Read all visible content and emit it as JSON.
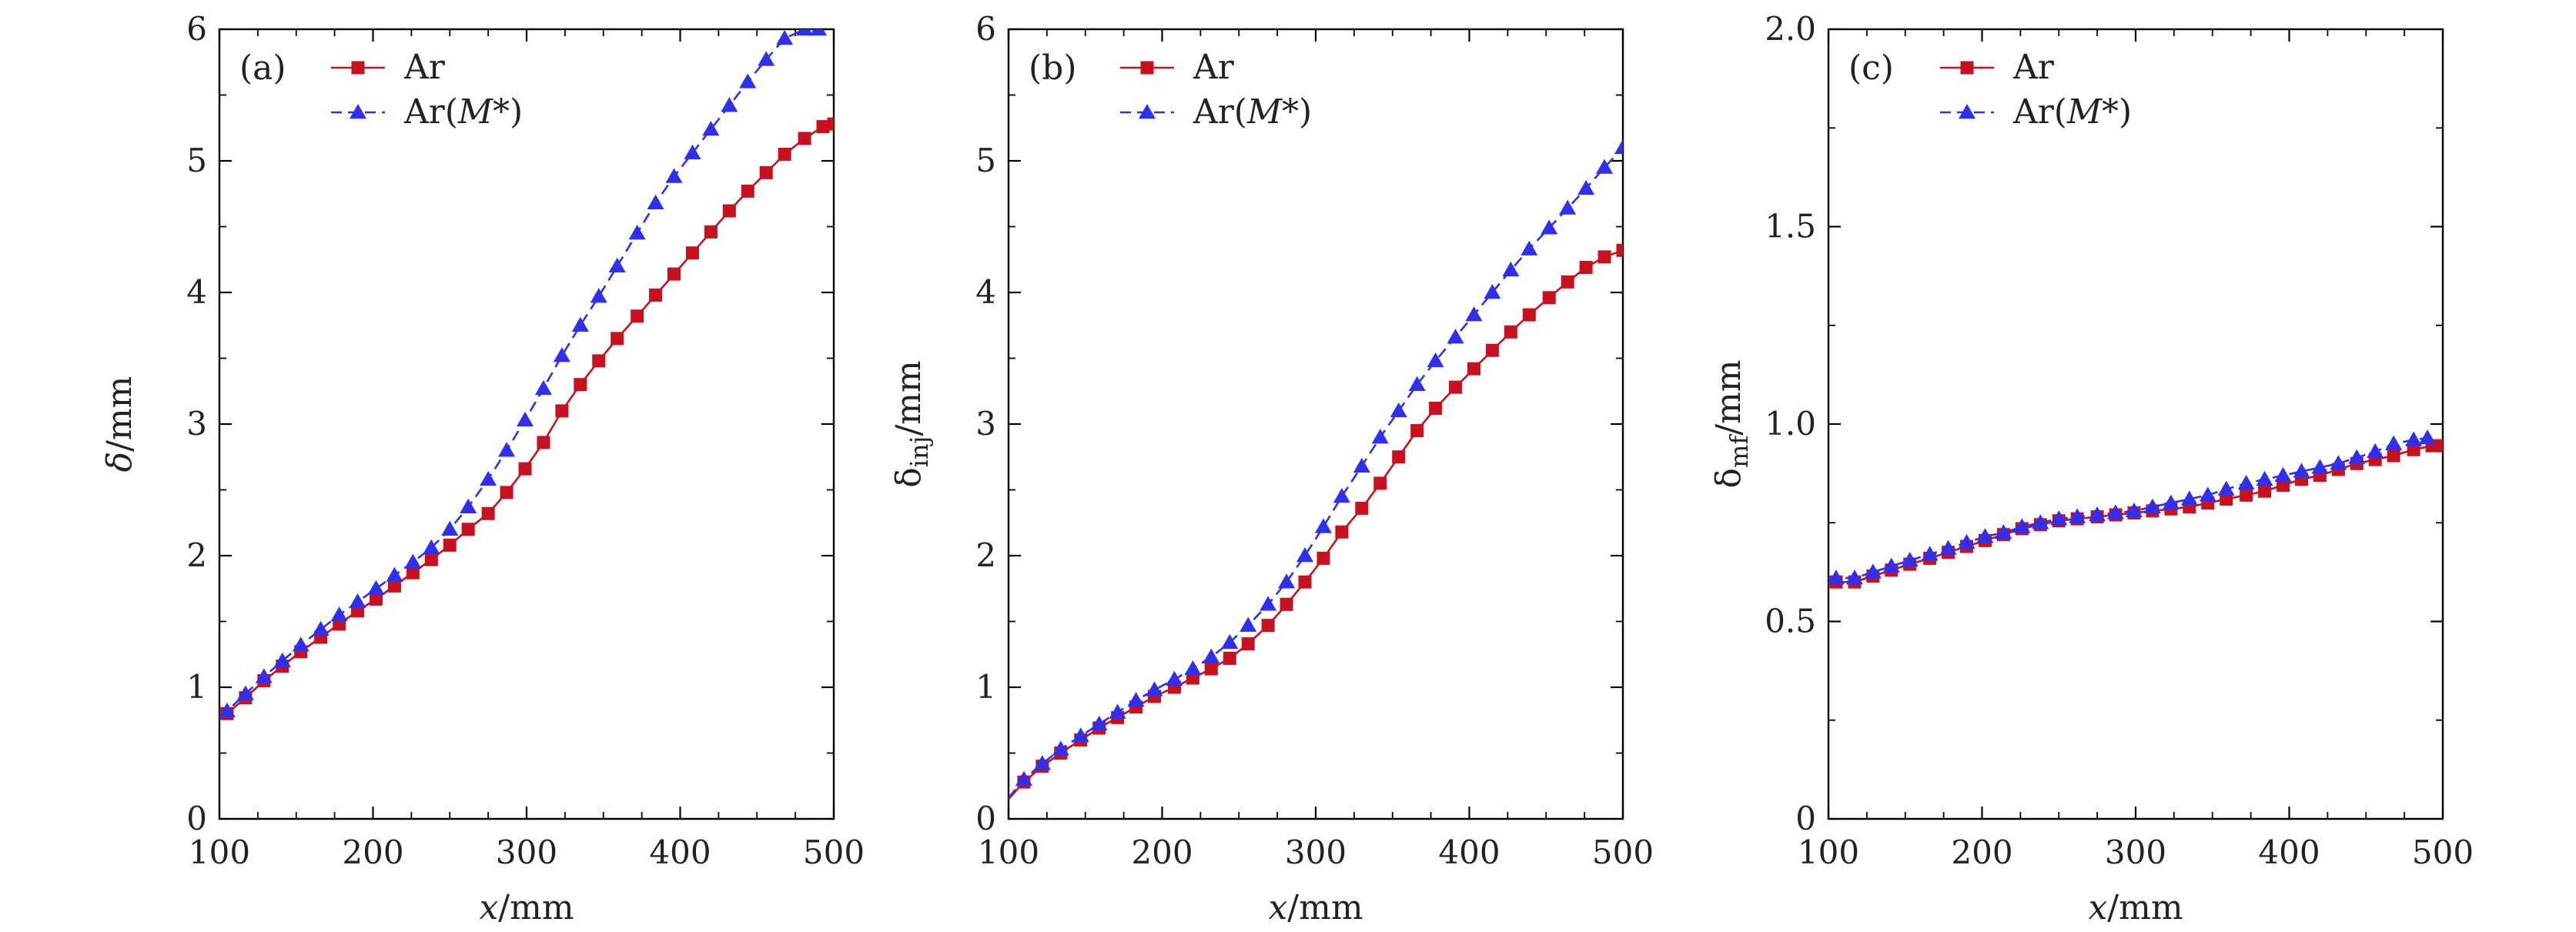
{
  "colors": {
    "ar": "#c8101e",
    "ar_m": "#2f2ff0",
    "axis": "#000000"
  },
  "chart_data": [
    {
      "type": "line",
      "panel_label": "(a)",
      "xlabel": "x/mm",
      "ylabel": "δ/mm",
      "ylabel_main": "δ",
      "ylabel_sub": "",
      "xlim": [
        100,
        500
      ],
      "ylim": [
        0,
        6
      ],
      "xticks": [
        100,
        200,
        300,
        400,
        500
      ],
      "yticks": [
        0,
        1,
        2,
        3,
        4,
        5,
        6
      ],
      "ytick_labels": [
        "0",
        "1",
        "2",
        "3",
        "4",
        "5",
        "6"
      ],
      "legend": [
        "Ar",
        "Ar(M*)"
      ],
      "series": [
        {
          "name": "Ar",
          "marker": "square",
          "dash": "solid",
          "x": [
            100,
            105,
            117,
            129,
            141,
            153,
            166,
            178,
            190,
            202,
            214,
            226,
            238,
            250,
            262,
            275,
            287,
            299,
            311,
            323,
            335,
            347,
            359,
            372,
            384,
            396,
            408,
            420,
            432,
            444,
            456,
            468,
            481,
            493,
            500
          ],
          "y": [
            0.76,
            0.8,
            0.92,
            1.05,
            1.16,
            1.27,
            1.38,
            1.48,
            1.58,
            1.67,
            1.77,
            1.87,
            1.97,
            2.08,
            2.2,
            2.32,
            2.48,
            2.66,
            2.86,
            3.1,
            3.3,
            3.48,
            3.65,
            3.82,
            3.98,
            4.14,
            4.3,
            4.46,
            4.62,
            4.77,
            4.91,
            5.05,
            5.17,
            5.26,
            5.28
          ]
        },
        {
          "name": "Ar(M*)",
          "marker": "triangle",
          "dash": "dashed",
          "x": [
            100,
            105,
            117,
            129,
            141,
            153,
            166,
            178,
            190,
            202,
            214,
            226,
            238,
            250,
            262,
            275,
            287,
            299,
            311,
            323,
            335,
            347,
            359,
            372,
            384,
            396,
            408,
            420,
            432,
            444,
            456,
            468,
            481,
            490
          ],
          "y": [
            0.78,
            0.82,
            0.95,
            1.08,
            1.2,
            1.32,
            1.44,
            1.55,
            1.65,
            1.75,
            1.85,
            1.95,
            2.06,
            2.2,
            2.37,
            2.58,
            2.8,
            3.03,
            3.27,
            3.52,
            3.75,
            3.97,
            4.2,
            4.45,
            4.68,
            4.88,
            5.06,
            5.24,
            5.42,
            5.6,
            5.77,
            5.93,
            6.0,
            6.0
          ]
        }
      ]
    },
    {
      "type": "line",
      "panel_label": "(b)",
      "xlabel": "x/mm",
      "ylabel": "δinj/mm",
      "ylabel_main": "δ",
      "ylabel_sub": "inj",
      "xlim": [
        100,
        500
      ],
      "ylim": [
        0,
        6
      ],
      "xticks": [
        100,
        200,
        300,
        400,
        500
      ],
      "yticks": [
        0,
        1,
        2,
        3,
        4,
        5,
        6
      ],
      "ytick_labels": [
        "0",
        "1",
        "2",
        "3",
        "4",
        "5",
        "6"
      ],
      "legend": [
        "Ar",
        "Ar(M*)"
      ],
      "series": [
        {
          "name": "Ar",
          "marker": "square",
          "dash": "solid",
          "x": [
            100,
            110,
            122,
            134,
            147,
            159,
            171,
            183,
            195,
            208,
            220,
            232,
            244,
            256,
            269,
            281,
            293,
            305,
            317,
            330,
            342,
            354,
            366,
            378,
            391,
            403,
            415,
            427,
            439,
            452,
            464,
            476,
            488,
            500
          ],
          "y": [
            0.15,
            0.28,
            0.4,
            0.5,
            0.6,
            0.69,
            0.77,
            0.85,
            0.93,
            1.0,
            1.07,
            1.14,
            1.22,
            1.33,
            1.47,
            1.63,
            1.8,
            1.98,
            2.18,
            2.36,
            2.55,
            2.75,
            2.95,
            3.12,
            3.28,
            3.42,
            3.56,
            3.7,
            3.83,
            3.96,
            4.08,
            4.19,
            4.27,
            4.32
          ]
        },
        {
          "name": "Ar(M*)",
          "marker": "triangle",
          "dash": "dashed",
          "x": [
            100,
            110,
            122,
            134,
            147,
            159,
            171,
            183,
            195,
            208,
            220,
            232,
            244,
            256,
            269,
            281,
            293,
            305,
            317,
            330,
            342,
            354,
            366,
            378,
            391,
            403,
            415,
            427,
            439,
            452,
            464,
            476,
            488,
            500
          ],
          "y": [
            0.16,
            0.3,
            0.42,
            0.53,
            0.63,
            0.72,
            0.81,
            0.9,
            0.98,
            1.06,
            1.14,
            1.23,
            1.34,
            1.47,
            1.63,
            1.8,
            2.0,
            2.22,
            2.45,
            2.68,
            2.9,
            3.1,
            3.3,
            3.48,
            3.66,
            3.83,
            4.0,
            4.17,
            4.33,
            4.49,
            4.64,
            4.79,
            4.95,
            5.1
          ]
        }
      ]
    },
    {
      "type": "line",
      "panel_label": "(c)",
      "xlabel": "x/mm",
      "ylabel": "δmf/mm",
      "ylabel_main": "δ",
      "ylabel_sub": "mf",
      "xlim": [
        100,
        500
      ],
      "ylim": [
        0,
        2.0
      ],
      "xticks": [
        100,
        200,
        300,
        400,
        500
      ],
      "yticks": [
        0,
        0.5,
        1.0,
        1.5,
        2.0
      ],
      "ytick_labels": [
        "0",
        "0.5",
        "1.0",
        "1.5",
        "2.0"
      ],
      "legend": [
        "Ar",
        "Ar(M*)"
      ],
      "series": [
        {
          "name": "Ar",
          "marker": "square",
          "dash": "solid",
          "x": [
            100,
            105,
            117,
            129,
            141,
            153,
            166,
            178,
            190,
            202,
            214,
            226,
            238,
            250,
            262,
            275,
            287,
            299,
            311,
            323,
            335,
            347,
            359,
            372,
            384,
            396,
            408,
            420,
            432,
            444,
            456,
            468,
            481,
            493,
            500
          ],
          "y": [
            0.6,
            0.6,
            0.6,
            0.615,
            0.63,
            0.645,
            0.66,
            0.675,
            0.69,
            0.705,
            0.72,
            0.735,
            0.745,
            0.755,
            0.76,
            0.765,
            0.77,
            0.775,
            0.78,
            0.785,
            0.79,
            0.8,
            0.81,
            0.82,
            0.83,
            0.845,
            0.86,
            0.87,
            0.885,
            0.9,
            0.91,
            0.92,
            0.935,
            0.945,
            0.945
          ]
        },
        {
          "name": "Ar(M*)",
          "marker": "triangle",
          "dash": "dashed",
          "x": [
            100,
            105,
            117,
            129,
            141,
            153,
            166,
            178,
            190,
            202,
            214,
            226,
            238,
            250,
            262,
            275,
            287,
            299,
            311,
            323,
            335,
            347,
            359,
            372,
            384,
            396,
            408,
            420,
            432,
            444,
            456,
            468,
            481,
            490
          ],
          "y": [
            0.61,
            0.61,
            0.61,
            0.625,
            0.64,
            0.655,
            0.67,
            0.685,
            0.7,
            0.715,
            0.725,
            0.74,
            0.75,
            0.76,
            0.765,
            0.77,
            0.775,
            0.78,
            0.79,
            0.8,
            0.81,
            0.82,
            0.835,
            0.85,
            0.86,
            0.87,
            0.88,
            0.89,
            0.9,
            0.915,
            0.93,
            0.95,
            0.96,
            0.965
          ]
        }
      ]
    }
  ]
}
